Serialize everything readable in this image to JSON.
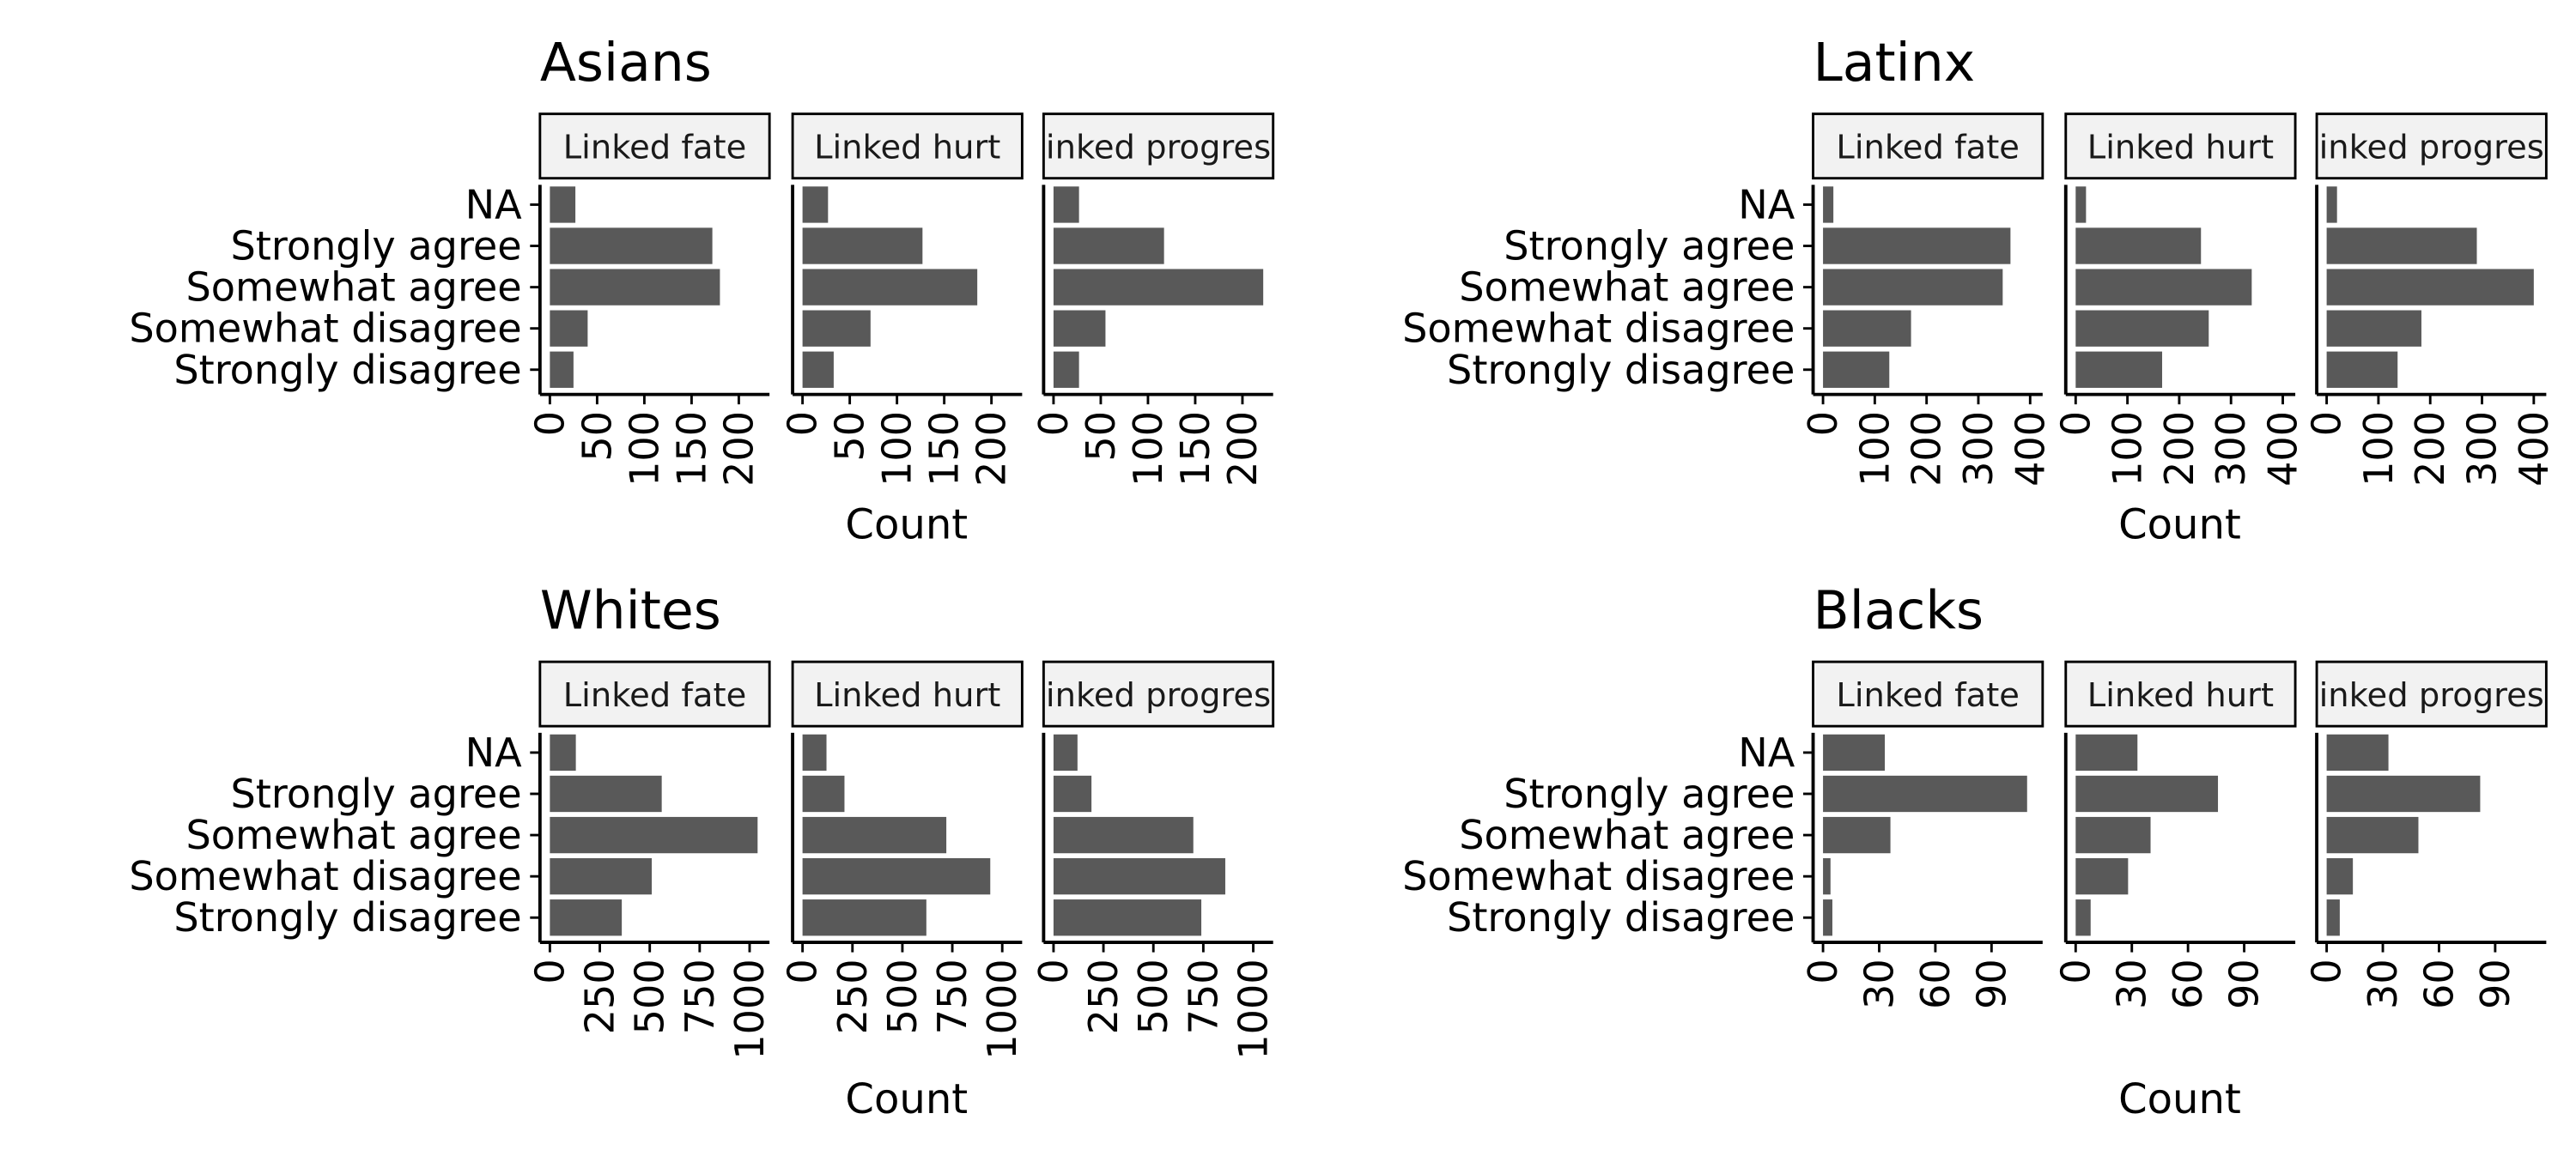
{
  "colors": {
    "bar": "#595959",
    "strip_fill": "#f2f2f2",
    "axis": "#000000",
    "text": "#000000"
  },
  "chart_data": [
    {
      "type": "bar",
      "title": "Asians",
      "xlabel": "Count",
      "categories": [
        "NA",
        "Strongly agree",
        "Somewhat agree",
        "Somewhat disagree",
        "Strongly disagree"
      ],
      "xlim": [
        0,
        222
      ],
      "ticks": [
        0,
        50,
        100,
        150,
        200
      ],
      "panels": [
        {
          "name": "Linked fate",
          "strip_label": "Linked fate",
          "values": [
            27,
            172,
            180,
            40,
            25
          ]
        },
        {
          "name": "Linked hurt",
          "strip_label": "Linked hurt",
          "values": [
            27,
            127,
            185,
            72,
            33
          ]
        },
        {
          "name": "Linked progress",
          "strip_label": "inked progres",
          "values": [
            27,
            117,
            222,
            55,
            27
          ]
        }
      ]
    },
    {
      "type": "bar",
      "title": "Latinx",
      "xlabel": "Count",
      "categories": [
        "NA",
        "Strongly agree",
        "Somewhat agree",
        "Somewhat disagree",
        "Strongly disagree"
      ],
      "xlim": [
        0,
        405
      ],
      "ticks": [
        0,
        100,
        200,
        300,
        400
      ],
      "panels": [
        {
          "name": "Linked fate",
          "strip_label": "Linked fate",
          "values": [
            20,
            362,
            347,
            170,
            128
          ]
        },
        {
          "name": "Linked hurt",
          "strip_label": "Linked hurt",
          "values": [
            20,
            242,
            340,
            257,
            167
          ]
        },
        {
          "name": "Linked progress",
          "strip_label": "inked progres",
          "values": [
            20,
            290,
            400,
            183,
            137
          ]
        }
      ]
    },
    {
      "type": "bar",
      "title": "Whites",
      "xlabel": "Count",
      "categories": [
        "NA",
        "Strongly agree",
        "Somewhat agree",
        "Somewhat disagree",
        "Strongly disagree"
      ],
      "xlim": [
        0,
        1050
      ],
      "ticks": [
        0,
        250,
        500,
        750,
        1000
      ],
      "panels": [
        {
          "name": "Linked fate",
          "strip_label": "Linked fate",
          "values": [
            130,
            560,
            1040,
            510,
            360
          ]
        },
        {
          "name": "Linked hurt",
          "strip_label": "Linked hurt",
          "values": [
            120,
            210,
            720,
            940,
            620
          ]
        },
        {
          "name": "Linked progress",
          "strip_label": "inked progres",
          "values": [
            120,
            190,
            700,
            860,
            740
          ]
        }
      ]
    },
    {
      "type": "bar",
      "title": "Blacks",
      "xlabel": "Count",
      "categories": [
        "NA",
        "Strongly agree",
        "Somewhat agree",
        "Somewhat disagree",
        "Strongly disagree"
      ],
      "xlim": [
        0,
        112
      ],
      "ticks": [
        0,
        30,
        60,
        90
      ],
      "panels": [
        {
          "name": "Linked fate",
          "strip_label": "Linked fate",
          "values": [
            33,
            109,
            36,
            4,
            5
          ]
        },
        {
          "name": "Linked hurt",
          "strip_label": "Linked hurt",
          "values": [
            33,
            76,
            40,
            28,
            8
          ]
        },
        {
          "name": "Linked progress",
          "strip_label": "inked progres",
          "values": [
            33,
            82,
            49,
            14,
            7
          ]
        }
      ]
    }
  ]
}
